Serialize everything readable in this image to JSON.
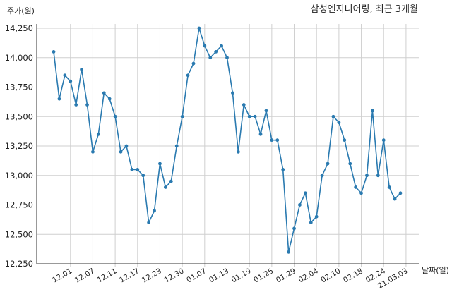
{
  "chart_data": {
    "type": "line",
    "title": "삼성엔지니어링, 최근 3개월",
    "ylabel": "주가(원)",
    "xlabel": "날짜(일)",
    "ylim": [
      12250,
      14250
    ],
    "yticks": [
      "12,250",
      "12,500",
      "12,750",
      "13,000",
      "13,250",
      "13,500",
      "13,750",
      "14,000",
      "14,250"
    ],
    "xtick_labels": [
      "12.01",
      "12.07",
      "12.11",
      "12.17",
      "12.23",
      "12.30",
      "01.07",
      "01.13",
      "01.19",
      "01.25",
      "01.29",
      "02.04",
      "02.10",
      "02.18",
      "02.24",
      "21.03.03"
    ],
    "xtick_index": [
      3,
      7,
      11,
      15,
      19,
      23,
      27,
      31,
      35,
      39,
      43,
      47,
      51,
      55,
      59,
      63
    ],
    "grid": true,
    "series": [
      {
        "color": "#2a7ab0",
        "values": [
          14050,
          13650,
          13850,
          13800,
          13600,
          13900,
          13600,
          13200,
          13350,
          13700,
          13650,
          13500,
          13200,
          13250,
          13050,
          13050,
          13000,
          12600,
          12700,
          13100,
          12900,
          12950,
          13250,
          13500,
          13850,
          13950,
          14250,
          14100,
          14000,
          14050,
          14100,
          14000,
          13700,
          13200,
          13600,
          13500,
          13500,
          13350,
          13550,
          13300,
          13300,
          13050,
          12350,
          12550,
          12750,
          12850,
          12600,
          12650,
          13000,
          13100,
          13500,
          13450,
          13300,
          13100,
          12900,
          12850,
          13000,
          13550,
          13000,
          13300,
          12900,
          12800,
          12850
        ]
      }
    ]
  }
}
